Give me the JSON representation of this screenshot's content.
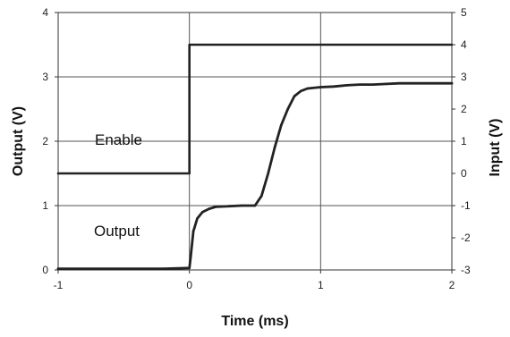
{
  "chart_data": {
    "type": "line",
    "title": "",
    "xlabel": "Time (ms)",
    "ylabel": "Output (V)",
    "y2label": "Input (V)",
    "xlim": [
      -1,
      2
    ],
    "ylim": [
      0,
      4
    ],
    "y2lim": [
      -3,
      5
    ],
    "xticks": [
      -1,
      0,
      1,
      2
    ],
    "yticks": [
      0,
      1,
      2,
      3,
      4
    ],
    "y2ticks": [
      -3,
      -2,
      -1,
      0,
      1,
      2,
      3,
      4,
      5
    ],
    "grid": true,
    "line_color": "#222222",
    "grid_color": "#555555",
    "annotations": [
      "Enable",
      "Output"
    ],
    "series": [
      {
        "axis": "right",
        "x": [
          -1,
          0,
          0,
          2
        ],
        "y": [
          0,
          0,
          4,
          4
        ]
      },
      {
        "axis": "left",
        "x": [
          -1,
          -0.2,
          0,
          0.01,
          0.03,
          0.06,
          0.1,
          0.15,
          0.2,
          0.3,
          0.4,
          0.5,
          0.55,
          0.6,
          0.65,
          0.7,
          0.75,
          0.8,
          0.85,
          0.9,
          1.0,
          1.1,
          1.2,
          1.3,
          1.4,
          1.5,
          1.6,
          1.7,
          1.8,
          1.9,
          2.0
        ],
        "y": [
          0.02,
          0.02,
          0.03,
          0.2,
          0.6,
          0.8,
          0.9,
          0.95,
          0.98,
          0.99,
          1.0,
          1.0,
          1.15,
          1.5,
          1.9,
          2.25,
          2.5,
          2.7,
          2.78,
          2.82,
          2.84,
          2.85,
          2.87,
          2.88,
          2.88,
          2.89,
          2.9,
          2.9,
          2.9,
          2.9,
          2.9
        ]
      }
    ]
  }
}
